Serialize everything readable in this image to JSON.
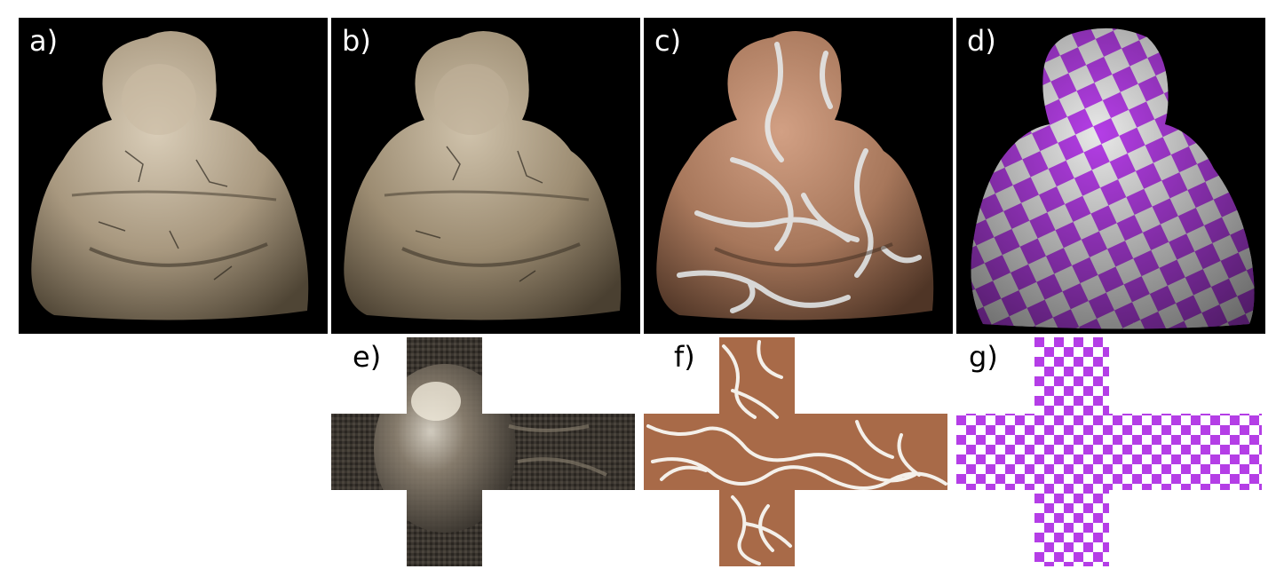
{
  "figure": {
    "panels": [
      {
        "label": "a)",
        "content": "buddha-render-original-marble"
      },
      {
        "label": "b)",
        "content": "buddha-render-reconstructed-marble"
      },
      {
        "label": "c)",
        "content": "buddha-render-cracked-clay-texture"
      },
      {
        "label": "d)",
        "content": "buddha-render-checkerboard-texture"
      },
      {
        "label": "e)",
        "content": "cube-map-unfold-original-texture"
      },
      {
        "label": "f)",
        "content": "cube-map-unfold-cracked-clay-texture"
      },
      {
        "label": "g)",
        "content": "cube-map-unfold-checkerboard"
      }
    ],
    "colors": {
      "background_render": "#000000",
      "marble": "#b8ab98",
      "clay": "#a86a48",
      "crack": "#f2f2f2",
      "checker_purple": "#b43ee6",
      "checker_white": "#ffffff",
      "dark_fabric": "#3a352f"
    }
  }
}
